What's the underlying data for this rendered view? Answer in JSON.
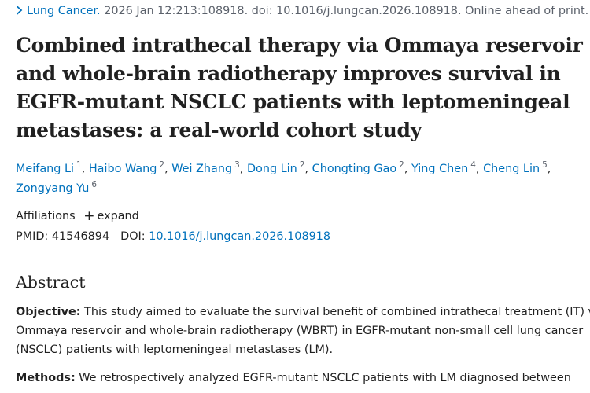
{
  "citation": {
    "journal": "Lung Cancer.",
    "details": "2026 Jan 12:213:108918. doi: 10.1016/j.lungcan.2026.108918. Online ahead of print."
  },
  "title_lines": [
    "Combined intrathecal therapy via Ommaya reservoir",
    "and whole-brain radiotherapy improves survival in",
    "EGFR-mutant NSCLC patients with leptomeningeal",
    "metastases: a real-world cohort study"
  ],
  "authors": [
    {
      "name": "Meifang Li",
      "aff": "1"
    },
    {
      "name": "Haibo Wang",
      "aff": "2"
    },
    {
      "name": "Wei Zhang",
      "aff": "3"
    },
    {
      "name": "Dong Lin",
      "aff": "2"
    },
    {
      "name": "Chongting Gao",
      "aff": "2"
    },
    {
      "name": "Ying Chen",
      "aff": "4"
    },
    {
      "name": "Cheng Lin",
      "aff": "5"
    },
    {
      "name": "Zongyang Yu",
      "aff": "6"
    }
  ],
  "affiliations": {
    "label": "Affiliations",
    "expand_label": "expand"
  },
  "ids": {
    "pmid_label": "PMID:",
    "pmid": "41546894",
    "doi_label": "DOI:",
    "doi": "10.1016/j.lungcan.2026.108918"
  },
  "abstract": {
    "heading": "Abstract",
    "objective_label": "Objective:",
    "objective_lines": [
      "This study aimed to evaluate the survival benefit of combined intrathecal treatment (IT) via",
      "Ommaya reservoir and whole-brain radiotherapy (WBRT) in EGFR-mutant non-small cell lung cancer",
      "(NSCLC) patients with leptomeningeal metastases (LM)."
    ],
    "methods_label": "Methods:",
    "methods_lines": [
      "We retrospectively analyzed EGFR-mutant NSCLC patients with LM diagnosed between"
    ]
  }
}
